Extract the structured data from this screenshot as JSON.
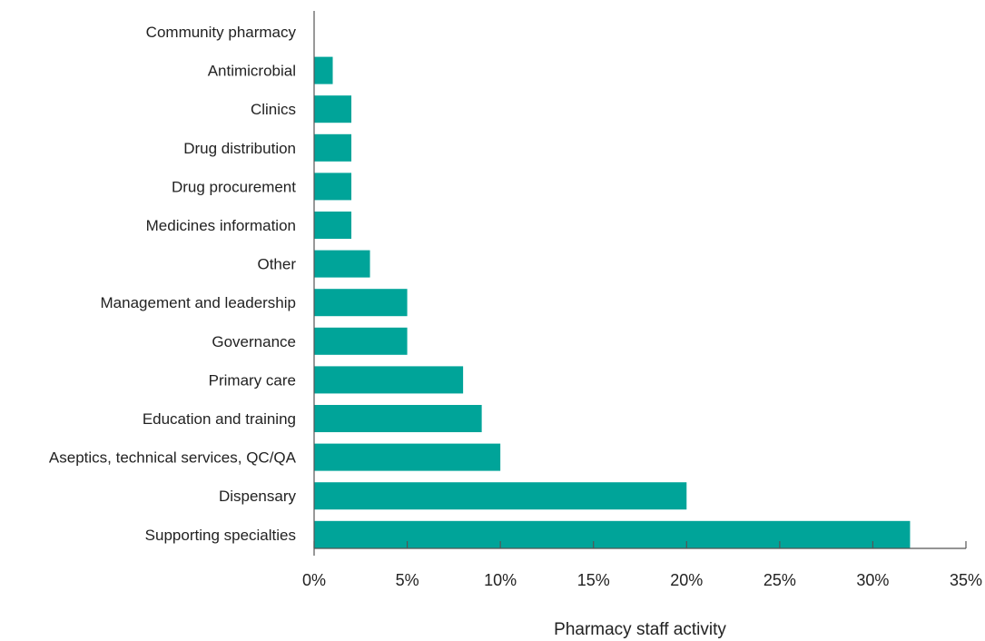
{
  "chart_data": {
    "type": "bar",
    "orientation": "horizontal",
    "title": "",
    "xlabel": "Pharmacy staff activity",
    "ylabel": "",
    "categories": [
      "Community pharmacy",
      "Antimicrobial",
      "Clinics",
      "Drug distribution",
      "Drug procurement",
      "Medicines information",
      "Other",
      "Management and leadership",
      "Governance",
      "Primary care",
      "Education and training",
      "Aseptics, technical services, QC/QA",
      "Dispensary",
      "Supporting specialties"
    ],
    "values": [
      0,
      1,
      2,
      2,
      2,
      2,
      3,
      5,
      5,
      8,
      9,
      10,
      20,
      32
    ],
    "xlim": [
      0,
      35
    ],
    "ticks": [
      0,
      5,
      10,
      15,
      20,
      25,
      30,
      35
    ],
    "tick_labels": [
      "0%",
      "5%",
      "10%",
      "15%",
      "20%",
      "25%",
      "30%",
      "35%"
    ],
    "unit": "%",
    "grid": false,
    "legend": "none",
    "bar_color": "#00a499",
    "axis_color": "#555555"
  }
}
